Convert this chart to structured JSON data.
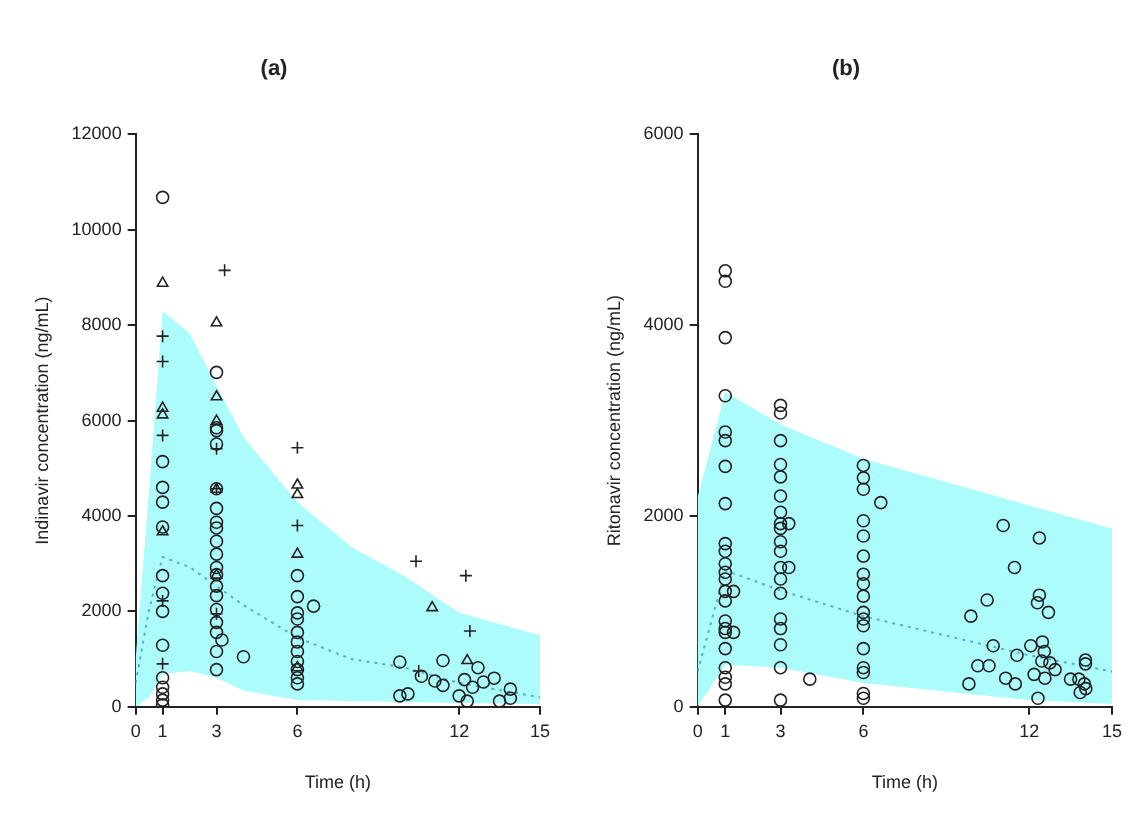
{
  "chart_data": [
    {
      "type": "scatter",
      "title": "(a)",
      "xlabel": "Time (h)",
      "ylabel": "Indinavir concentration (ng/mL)",
      "xlim": [
        0,
        15
      ],
      "xticks": [
        0,
        1,
        3,
        6,
        12,
        15
      ],
      "ylim": [
        0,
        12000
      ],
      "yticks": [
        0,
        2000,
        4000,
        6000,
        8000,
        10000,
        12000
      ],
      "series": [
        {
          "type": "line",
          "color": "#5aaed0",
          "line_style": "dotted",
          "x": [
            0,
            0.5,
            1,
            2,
            3,
            4,
            6,
            8,
            10,
            12,
            15
          ],
          "values": [
            500,
            2040,
            3140,
            2930,
            2530,
            2130,
            1450,
            1000,
            820,
            500,
            200
          ],
          "lower": [
            0,
            200,
            690,
            750,
            610,
            340,
            140,
            120,
            100,
            80,
            60
          ],
          "upper": [
            1000,
            4570,
            8300,
            7830,
            6730,
            5650,
            4290,
            3350,
            2730,
            1970,
            1500
          ]
        },
        {
          "type": "scatter",
          "color": "#222222",
          "marker": "circle",
          "x": [
            1,
            1,
            1,
            1,
            1,
            1,
            1,
            1,
            1,
            1,
            1,
            1,
            1,
            1,
            3,
            3,
            3,
            3,
            3,
            3,
            3,
            3,
            3,
            3,
            3,
            3,
            3,
            3,
            3,
            3,
            3,
            3,
            3,
            3.2,
            4,
            6,
            6,
            6,
            6,
            6,
            6,
            6,
            6,
            6,
            6,
            6,
            6.6,
            9.8,
            11.4,
            12.7,
            13.3,
            10.6,
            11.1,
            11.4,
            9.8,
            10.1,
            12.2,
            12.9,
            12,
            12.5,
            13.9,
            13.5,
            13.9,
            12.3
          ],
          "values": [
            10680,
            5140,
            4600,
            4290,
            3770,
            2750,
            2380,
            2000,
            1290,
            610,
            410,
            270,
            140,
            40,
            7010,
            5850,
            5790,
            5510,
            4570,
            4160,
            3870,
            3750,
            3470,
            3200,
            2920,
            2770,
            2530,
            2330,
            2040,
            1770,
            1560,
            1160,
            780,
            1400,
            1050,
            2750,
            2310,
            1970,
            1840,
            1560,
            1360,
            1160,
            950,
            780,
            610,
            480,
            2110,
            940,
            970,
            820,
            600,
            640,
            540,
            450,
            230,
            270,
            570,
            520,
            230,
            410,
            370,
            120,
            180,
            120
          ]
        },
        {
          "type": "scatter",
          "color": "#222222",
          "marker": "triangle",
          "x": [
            1,
            1,
            1,
            1,
            3,
            3,
            3,
            3,
            3,
            6,
            6,
            6,
            6,
            11,
            12.3
          ],
          "values": [
            8880,
            6260,
            6120,
            3670,
            8050,
            6500,
            5990,
            4560,
            2760,
            4650,
            4450,
            3200,
            820,
            2080,
            970
          ]
        },
        {
          "type": "scatter",
          "color": "#222222",
          "marker": "cross",
          "x": [
            1,
            1,
            1,
            1,
            1,
            3.3,
            3,
            3,
            3,
            6,
            6,
            10.4,
            12.25,
            12.4,
            10.5
          ],
          "values": [
            7770,
            7240,
            5690,
            2220,
            900,
            9150,
            5410,
            4570,
            1950,
            5430,
            3800,
            3050,
            2750,
            1590,
            750
          ]
        }
      ]
    },
    {
      "type": "scatter",
      "title": "(b)",
      "xlabel": "Time (h)",
      "ylabel": "Ritonavir concentration (ng/mL)",
      "xlim": [
        0,
        15
      ],
      "xticks": [
        0,
        1,
        3,
        6,
        12,
        15
      ],
      "ylim": [
        0,
        6000
      ],
      "yticks": [
        0,
        2000,
        4000,
        6000
      ],
      "series": [
        {
          "type": "line",
          "color": "#5aaed0",
          "line_style": "dotted",
          "x": [
            0,
            1,
            3,
            6,
            12,
            15
          ],
          "values": [
            370,
            1430,
            1220,
            950,
            540,
            370
          ],
          "lower": [
            0,
            440,
            410,
            250,
            70,
            30
          ],
          "upper": [
            2200,
            3300,
            2960,
            2600,
            2110,
            1870
          ]
        },
        {
          "type": "scatter",
          "color": "#222222",
          "marker": "circle",
          "x": [
            1,
            1,
            1,
            1,
            1,
            1,
            1,
            1,
            1,
            1,
            1,
            1,
            1,
            1,
            1,
            1,
            1,
            1,
            1,
            1,
            1,
            1,
            1,
            1.3,
            1.3,
            3,
            3,
            3,
            3,
            3,
            3,
            3,
            3,
            3,
            3,
            3,
            3,
            3,
            3,
            3,
            3,
            3,
            3,
            3,
            3.3,
            3.3,
            4.06,
            6,
            6,
            6,
            6,
            6,
            6,
            6,
            6,
            6,
            6,
            6,
            6,
            6,
            6,
            6,
            6,
            6,
            6.63,
            11.06,
            12.37,
            11.47,
            10.48,
            9.89,
            12.37,
            12.3,
            12.7,
            10.7,
            11.56,
            12.06,
            12.48,
            12.55,
            12.75,
            12.94,
            10.14,
            10.55,
            9.82,
            11.15,
            11.5,
            12.18,
            12.57,
            12.32,
            14.04,
            14.04,
            13.5,
            13.8,
            14,
            13.85,
            14.05,
            12.46
          ],
          "values": [
            4570,
            4460,
            3870,
            3260,
            2880,
            2790,
            2520,
            2130,
            1710,
            1630,
            1500,
            1410,
            1340,
            1210,
            1110,
            900,
            820,
            780,
            610,
            410,
            310,
            240,
            70,
            1210,
            780,
            3160,
            3080,
            2790,
            2540,
            2410,
            2210,
            2040,
            1920,
            1870,
            1730,
            1630,
            1460,
            1340,
            1190,
            920,
            820,
            650,
            410,
            70,
            1920,
            1460,
            290,
            2530,
            2400,
            2280,
            1950,
            1790,
            1580,
            1390,
            1290,
            1160,
            990,
            920,
            850,
            610,
            410,
            360,
            140,
            90,
            2140,
            1900,
            1770,
            1460,
            1120,
            950,
            1170,
            1090,
            990,
            640,
            540,
            640,
            680,
            580,
            460,
            390,
            430,
            430,
            240,
            300,
            240,
            340,
            300,
            90,
            490,
            450,
            290,
            290,
            240,
            150,
            190,
            480
          ]
        }
      ]
    }
  ]
}
